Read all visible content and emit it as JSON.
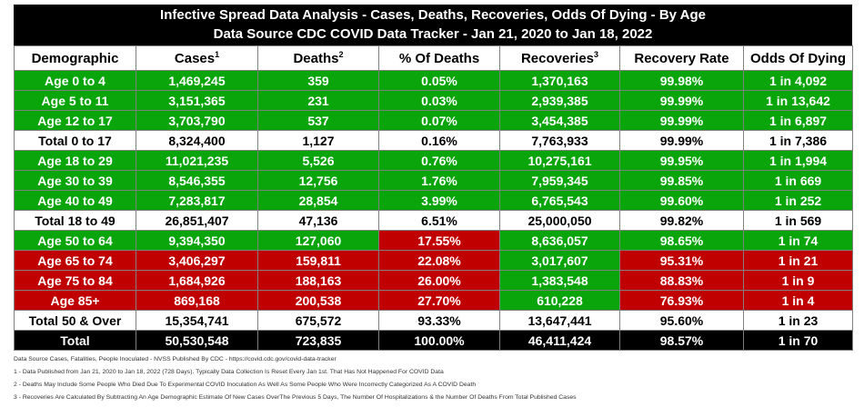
{
  "chart_data": {
    "type": "table",
    "title": "Infective Spread Data Analysis - Cases, Deaths, Recoveries, Odds Of Dying - By Age",
    "subtitle": "Data Source CDC COVID Data Tracker - Jan 21, 2020 to Jan 18, 2022",
    "columns": [
      {
        "label": "Demographic",
        "sup": ""
      },
      {
        "label": "Cases",
        "sup": "1"
      },
      {
        "label": "Deaths",
        "sup": "2"
      },
      {
        "label": "% Of Deaths",
        "sup": ""
      },
      {
        "label": "Recoveries",
        "sup": "3"
      },
      {
        "label": "Recovery Rate",
        "sup": ""
      },
      {
        "label": "Odds Of Dying",
        "sup": ""
      }
    ],
    "rows": [
      [
        "Age 0 to 4",
        "1,469,245",
        "359",
        "0.05%",
        "1,370,163",
        "99.98%",
        "1 in 4,092"
      ],
      [
        "Age 5 to 11",
        "3,151,365",
        "231",
        "0.03%",
        "2,939,385",
        "99.99%",
        "1 in 13,642"
      ],
      [
        "Age 12 to 17",
        "3,703,790",
        "537",
        "0.07%",
        "3,454,385",
        "99.99%",
        "1 in 6,897"
      ],
      [
        "Total 0 to 17",
        "8,324,400",
        "1,127",
        "0.16%",
        "7,763,933",
        "99.99%",
        "1 in 7,386"
      ],
      [
        "Age 18 to 29",
        "11,021,235",
        "5,526",
        "0.76%",
        "10,275,161",
        "99.95%",
        "1 in 1,994"
      ],
      [
        "Age 30 to 39",
        "8,546,355",
        "12,756",
        "1.76%",
        "7,959,345",
        "99.85%",
        "1 in 669"
      ],
      [
        "Age 40 to 49",
        "7,283,817",
        "28,854",
        "3.99%",
        "6,765,543",
        "99.60%",
        "1 in 252"
      ],
      [
        "Total 18 to 49",
        "26,851,407",
        "47,136",
        "6.51%",
        "25,000,050",
        "99.82%",
        "1 in 569"
      ],
      [
        "Age 50 to 64",
        "9,394,350",
        "127,060",
        "17.55%",
        "8,636,057",
        "98.65%",
        "1 in 74"
      ],
      [
        "Age 65 to 74",
        "3,406,297",
        "159,811",
        "22.08%",
        "3,017,607",
        "95.31%",
        "1 in 21"
      ],
      [
        "Age 75 to 84",
        "1,684,926",
        "188,163",
        "26.00%",
        "1,383,548",
        "88.83%",
        "1 in 9"
      ],
      [
        "Age 85+",
        "869,168",
        "200,538",
        "27.70%",
        "610,228",
        "76.93%",
        "1 in 4"
      ],
      [
        "Total 50 & Over",
        "15,354,741",
        "675,572",
        "93.33%",
        "13,647,441",
        "95.60%",
        "1 in 23"
      ],
      [
        "Total",
        "50,530,548",
        "723,835",
        "100.00%",
        "46,411,424",
        "98.57%",
        "1 in 70"
      ]
    ],
    "cell_colors": {
      "g": "#0aa50a",
      "r": "#c00000",
      "w": "#ffffff",
      "k": "#000000"
    },
    "row_color_codes": [
      [
        "g",
        "g",
        "g",
        "g",
        "g",
        "g",
        "g"
      ],
      [
        "g",
        "g",
        "g",
        "g",
        "g",
        "g",
        "g"
      ],
      [
        "g",
        "g",
        "g",
        "g",
        "g",
        "g",
        "g"
      ],
      [
        "w",
        "w",
        "w",
        "w",
        "w",
        "w",
        "w"
      ],
      [
        "g",
        "g",
        "g",
        "g",
        "g",
        "g",
        "g"
      ],
      [
        "g",
        "g",
        "g",
        "g",
        "g",
        "g",
        "g"
      ],
      [
        "g",
        "g",
        "g",
        "g",
        "g",
        "g",
        "g"
      ],
      [
        "w",
        "w",
        "w",
        "w",
        "w",
        "w",
        "w"
      ],
      [
        "g",
        "g",
        "g",
        "r",
        "g",
        "g",
        "g"
      ],
      [
        "r",
        "r",
        "r",
        "r",
        "g",
        "r",
        "r"
      ],
      [
        "r",
        "r",
        "r",
        "r",
        "g",
        "r",
        "r"
      ],
      [
        "r",
        "r",
        "r",
        "r",
        "g",
        "r",
        "r"
      ],
      [
        "w",
        "w",
        "w",
        "w",
        "w",
        "w",
        "w"
      ],
      [
        "k",
        "k",
        "k",
        "k",
        "k",
        "k",
        "k"
      ]
    ]
  },
  "notes": [
    "Data Source Cases, Fatalities, People Inoculated - NVSS Published By CDC - https://covid.cdc.gov/covid-data-tracker",
    "1 - Data Published from Jan 21, 2020 to Jan 18, 2022 (728 Days). Typically Data Collection Is Reset Every Jan 1st. That Has Not Happened For COVID Data",
    "2 - Deaths May Include Some People Who Died Due To Experimental COVID Inoculation As Well As Some People Who Were Incorrectly Categorized As A COVID Death",
    "3 - Recoveries Are Calculated By Subtracting An Age Demographic Estimate Of New Cases OverThe Previous 5 Days, The Number Of Hospitalizations & the Number Of Deaths From Total Published Cases"
  ]
}
